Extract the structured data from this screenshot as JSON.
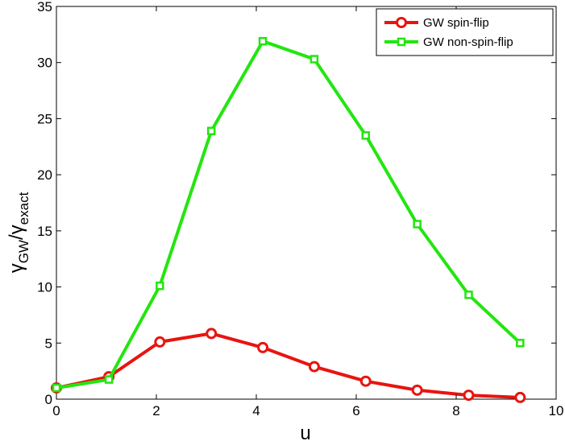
{
  "chart_data": {
    "type": "line",
    "xlabel": "u",
    "ylabel": {
      "base": "γ",
      "sub1": "GW",
      "slash": "/",
      "base2": "γ",
      "sub2": "exact"
    },
    "xlim": [
      0,
      10
    ],
    "ylim": [
      0,
      35
    ],
    "xticks": [
      0,
      2,
      4,
      6,
      8,
      10
    ],
    "yticks": [
      0,
      5,
      10,
      15,
      20,
      25,
      30,
      35
    ],
    "grid": false,
    "legend_position": "top-right",
    "series": [
      {
        "name": "GW spin-flip",
        "color": "#e8140f",
        "marker": "circle",
        "x": [
          0,
          1.05,
          2.07,
          3.1,
          4.13,
          5.16,
          6.19,
          7.22,
          8.25,
          9.28
        ],
        "y": [
          1.0,
          2.0,
          5.1,
          5.85,
          4.6,
          2.9,
          1.6,
          0.8,
          0.35,
          0.15
        ]
      },
      {
        "name": "GW non-spin-flip",
        "color": "#22e60e",
        "marker": "square",
        "x": [
          0,
          1.05,
          2.07,
          3.1,
          4.13,
          5.16,
          6.19,
          7.22,
          8.25,
          9.28
        ],
        "y": [
          1.0,
          1.75,
          10.1,
          23.9,
          31.9,
          30.3,
          23.5,
          15.6,
          9.3,
          5.0
        ]
      }
    ]
  }
}
